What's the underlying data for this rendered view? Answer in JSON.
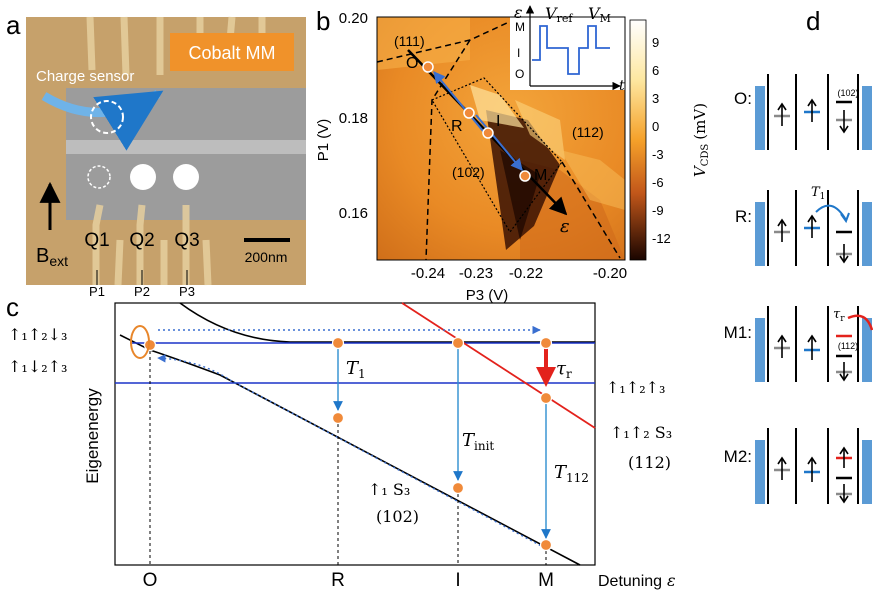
{
  "panel_labels": {
    "a": "a",
    "b": "b",
    "c": "c",
    "d": "d"
  },
  "panel_a": {
    "badge": "Cobalt MM",
    "sensor_label": "Charge sensor",
    "field_label": "B",
    "field_sub": "ext",
    "scale_bar": "200nm",
    "dots": [
      "Q1",
      "Q2",
      "Q3"
    ],
    "gates": [
      "P1",
      "P2",
      "P3"
    ]
  },
  "panel_b": {
    "xlabel": "P3 (V)",
    "ylabel": "P1 (V)",
    "xticks": [
      "-0.24",
      "-0.23",
      "-0.22",
      "-0.20"
    ],
    "yticks": [
      "0.20",
      "0.18",
      "0.16"
    ],
    "colorbar_label": "V",
    "colorbar_sub": "CDS",
    "colorbar_unit": "(mV)",
    "colorbar_ticks": [
      "9",
      "6",
      "3",
      "0",
      "-3",
      "-6",
      "-9",
      "-12"
    ],
    "regions": [
      "(111)",
      "(112)",
      "(102)"
    ],
    "points": [
      "O",
      "R",
      "I",
      "M"
    ],
    "detuning": "ε",
    "inset": {
      "y_axis": "ε",
      "x_axis": "t",
      "levels": [
        "M",
        "I",
        "O"
      ],
      "vref": "V",
      "vref_sub": "ref",
      "vm": "V",
      "vm_sub": "M"
    }
  },
  "panel_c": {
    "ylabel": "Eigenenergy",
    "xlabel": "Detuning",
    "xlabel_sym": "ε",
    "xticks": [
      "O",
      "R",
      "I",
      "M"
    ],
    "states": {
      "s1": "↑₁↑₂↓₃",
      "s2": "↑₁↓₂↑₃",
      "s3": "↑₁↑₂↑₃",
      "s4": "↑₁↑₂ S₃",
      "s4_sub": "(112)",
      "s5": "↑₁ S₃",
      "s5_sub": "(102)"
    },
    "processes": {
      "T1": "T",
      "T1_sub": "1",
      "Tinit": "T",
      "Tinit_sub": "init",
      "T112": "T",
      "T112_sub": "112",
      "taur": "τ",
      "taur_sub": "r"
    }
  },
  "panel_d": {
    "rows": [
      "O:",
      "R:",
      "M1:",
      "M2:"
    ],
    "label_102": "(102)",
    "label_112": "(112)",
    "t1": "T",
    "t1_sub": "1",
    "taur": "τ",
    "taur_sub": "r"
  },
  "colors": {
    "orange": "#e8862a",
    "blue": "#1f77c9",
    "red": "#e3221c",
    "lineblue": "#1b34c8",
    "gray": "#8a8a8a",
    "barrier_blue": "#5b9bd5"
  }
}
